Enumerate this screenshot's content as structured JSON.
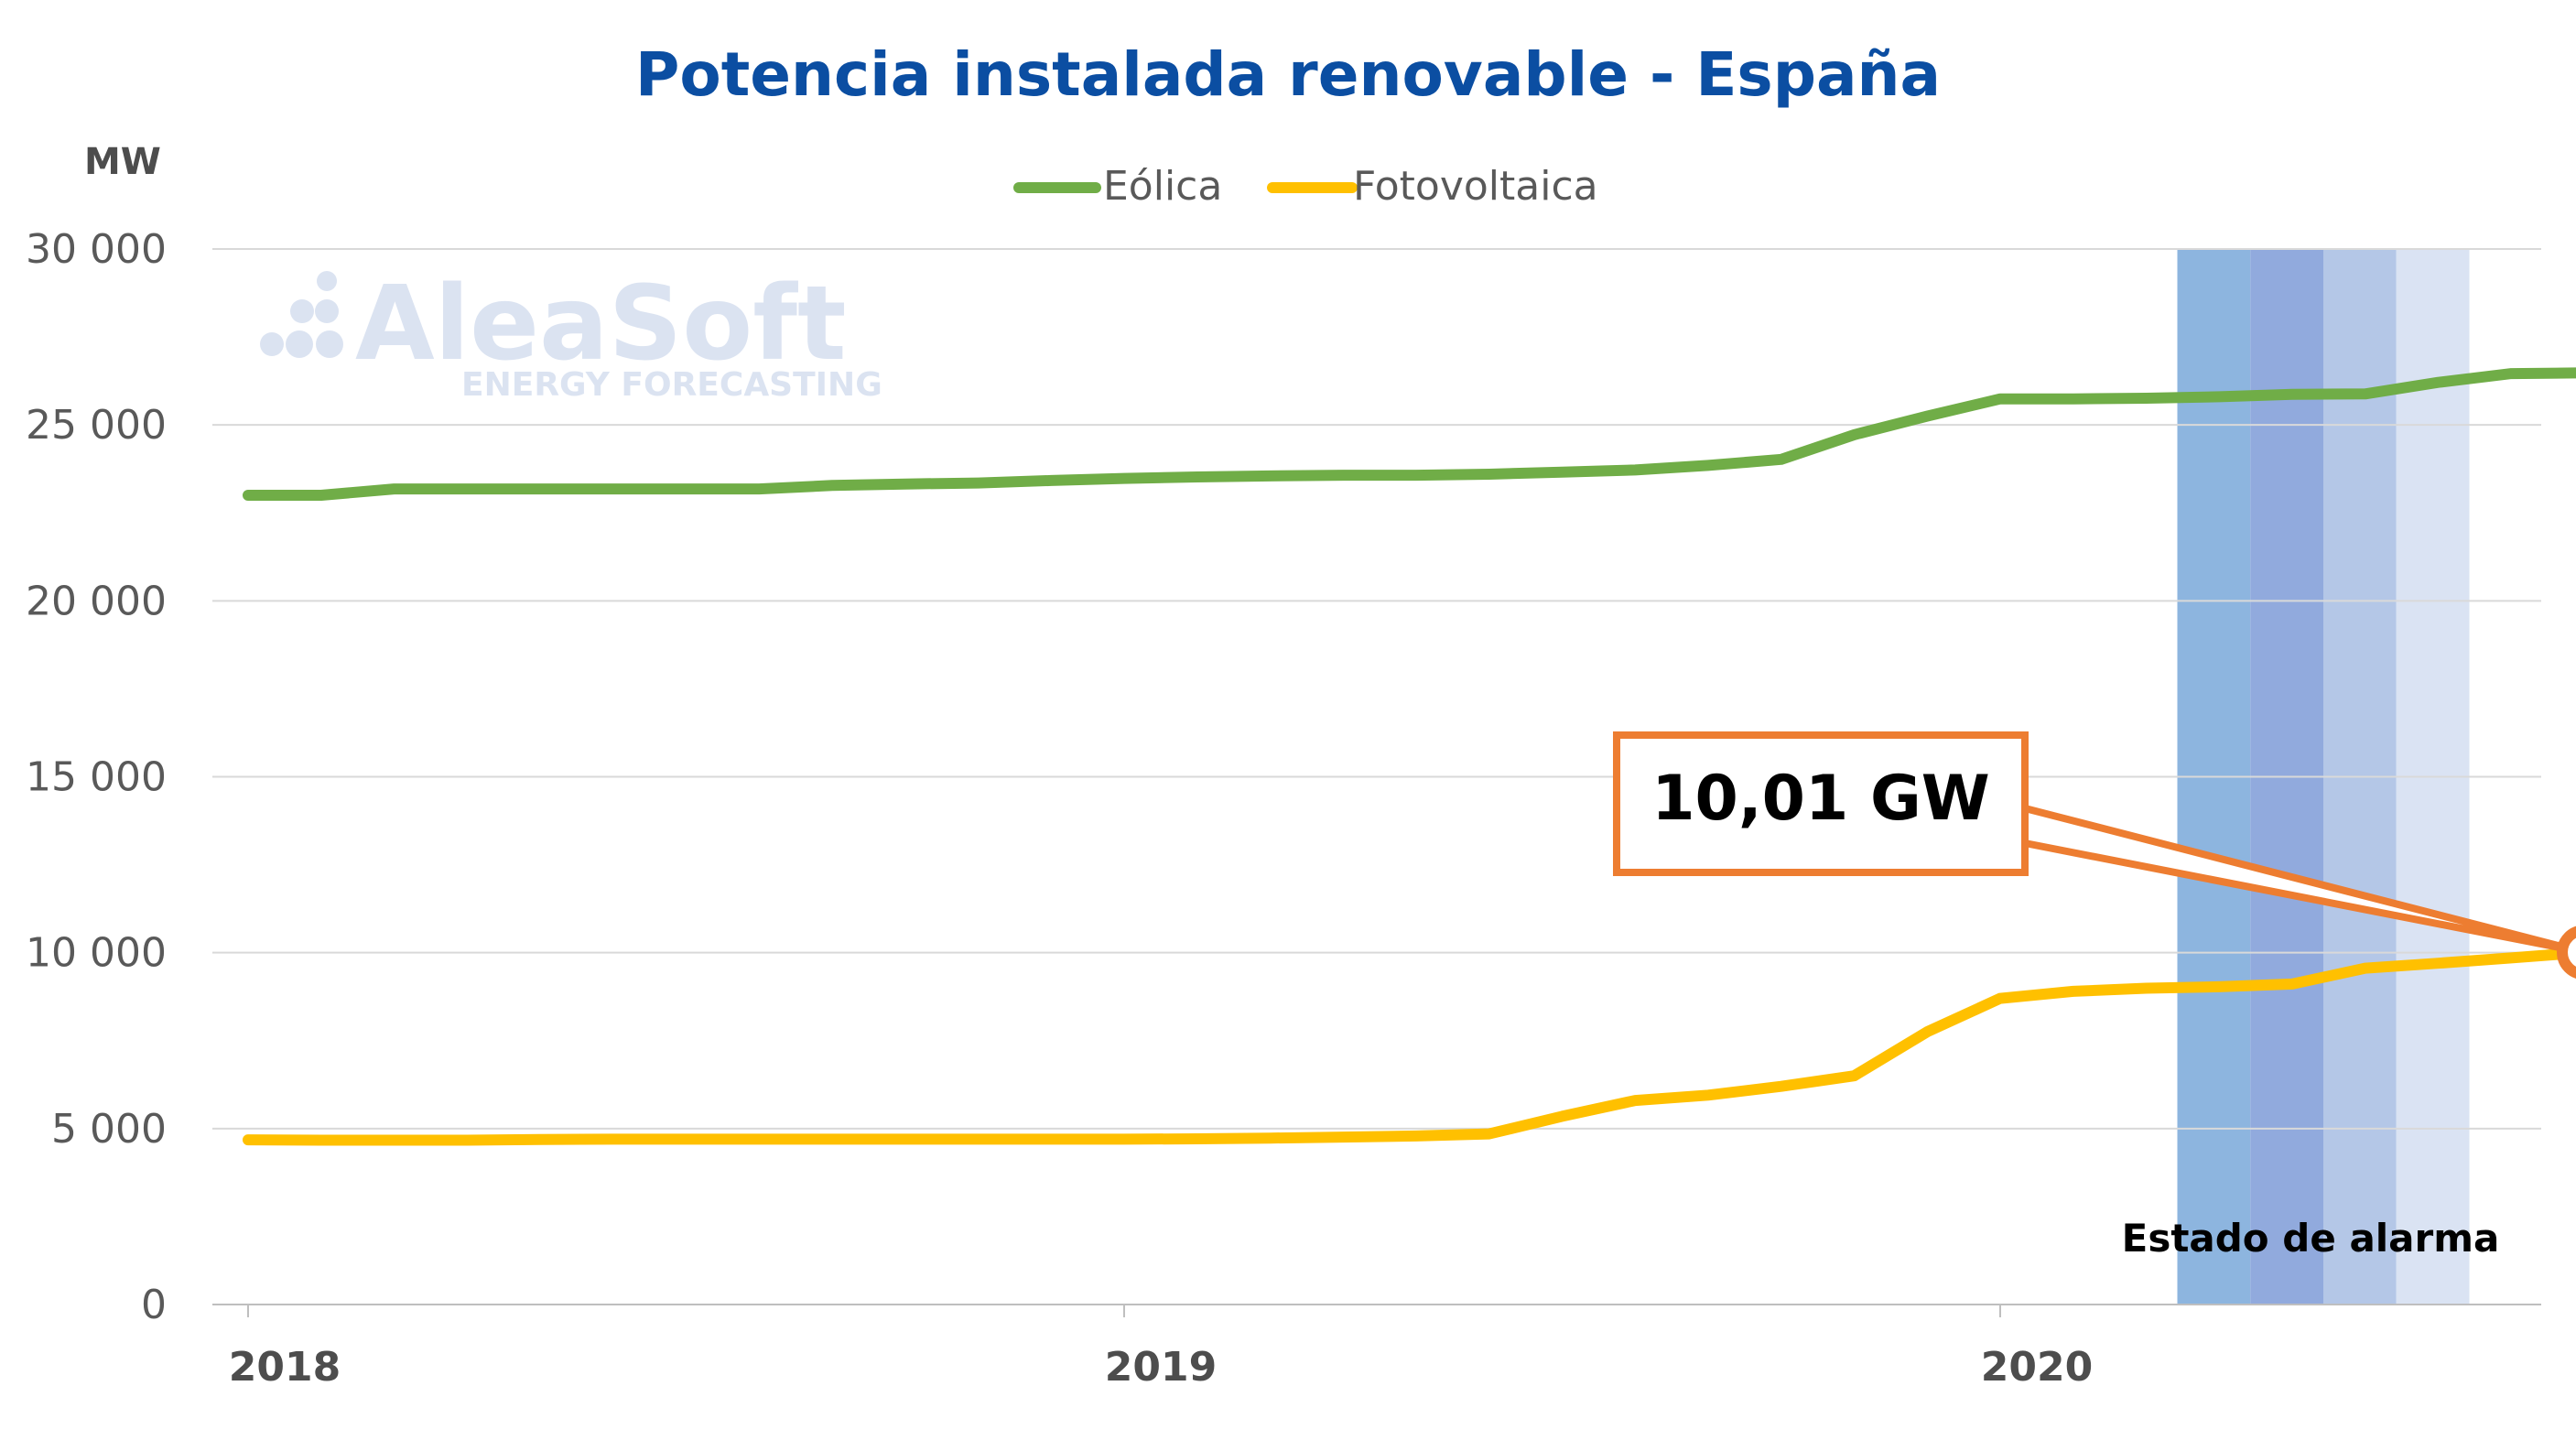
{
  "chart_data": {
    "type": "line",
    "title": "Potencia instalada renovable - España",
    "ylabel": "MW",
    "xlabel": "",
    "ylim": [
      0,
      30000
    ],
    "yticks": [
      0,
      5000,
      10000,
      15000,
      20000,
      25000,
      30000
    ],
    "ytick_labels": [
      "0",
      "5 000",
      "10 000",
      "15 000",
      "20 000",
      "25 000",
      "30 000"
    ],
    "xlim": [
      "2018-01",
      "2020-08"
    ],
    "xticks": [
      "2018",
      "2019",
      "2020"
    ],
    "grid": "horizontal",
    "legend": "top-center",
    "watermark": {
      "logo": "AleaSoft",
      "subtitle": "ENERGY FORECASTING"
    },
    "series": [
      {
        "name": "Eólica",
        "color": "#70ad47",
        "points": [
          [
            "2018-01",
            23000
          ],
          [
            "2018-02",
            23000
          ],
          [
            "2018-03",
            23180
          ],
          [
            "2018-04",
            23180
          ],
          [
            "2018-05",
            23180
          ],
          [
            "2018-06",
            23180
          ],
          [
            "2018-07",
            23180
          ],
          [
            "2018-08",
            23180
          ],
          [
            "2018-09",
            23280
          ],
          [
            "2018-10",
            23320
          ],
          [
            "2018-11",
            23350
          ],
          [
            "2018-12",
            23420
          ],
          [
            "2019-01",
            23480
          ],
          [
            "2019-02",
            23520
          ],
          [
            "2019-03",
            23550
          ],
          [
            "2019-04",
            23570
          ],
          [
            "2019-05",
            23570
          ],
          [
            "2019-06",
            23600
          ],
          [
            "2019-07",
            23660
          ],
          [
            "2019-08",
            23720
          ],
          [
            "2019-09",
            23850
          ],
          [
            "2019-10",
            24020
          ],
          [
            "2019-11",
            24720
          ],
          [
            "2019-12",
            25250
          ],
          [
            "2020-01",
            25740
          ],
          [
            "2020-02",
            25740
          ],
          [
            "2020-03",
            25760
          ],
          [
            "2020-04",
            25800
          ],
          [
            "2020-05",
            25870
          ],
          [
            "2020-06",
            25880
          ],
          [
            "2020-07",
            26210
          ],
          [
            "2020-08",
            26460
          ],
          [
            "2020-09",
            26480
          ]
        ]
      },
      {
        "name": "Fotovoltaica",
        "color": "#ffc000",
        "points": [
          [
            "2018-01",
            4680
          ],
          [
            "2018-02",
            4670
          ],
          [
            "2018-03",
            4670
          ],
          [
            "2018-04",
            4670
          ],
          [
            "2018-05",
            4690
          ],
          [
            "2018-06",
            4700
          ],
          [
            "2018-07",
            4700
          ],
          [
            "2018-08",
            4700
          ],
          [
            "2018-09",
            4700
          ],
          [
            "2018-10",
            4700
          ],
          [
            "2018-11",
            4700
          ],
          [
            "2018-12",
            4700
          ],
          [
            "2019-01",
            4700
          ],
          [
            "2019-02",
            4710
          ],
          [
            "2019-03",
            4730
          ],
          [
            "2019-04",
            4760
          ],
          [
            "2019-05",
            4790
          ],
          [
            "2019-06",
            4850
          ],
          [
            "2019-07",
            5350
          ],
          [
            "2019-08",
            5800
          ],
          [
            "2019-09",
            5950
          ],
          [
            "2019-10",
            6200
          ],
          [
            "2019-11",
            6500
          ],
          [
            "2019-12",
            7750
          ],
          [
            "2020-01",
            8700
          ],
          [
            "2020-02",
            8900
          ],
          [
            "2020-03",
            8990
          ],
          [
            "2020-04",
            9030
          ],
          [
            "2020-05",
            9110
          ],
          [
            "2020-06",
            9560
          ],
          [
            "2020-07",
            9700
          ],
          [
            "2020-08",
            9850
          ],
          [
            "2020-09",
            10010
          ]
        ]
      }
    ],
    "shaded_periods": {
      "label": "Estado de alarma",
      "bands": [
        {
          "start": "2020-03-14",
          "end": "2020-04-14",
          "color": "#8db5df"
        },
        {
          "start": "2020-04-14",
          "end": "2020-05-14",
          "color": "#91aadd"
        },
        {
          "start": "2020-05-14",
          "end": "2020-06-14",
          "color": "#b4c7e7"
        },
        {
          "start": "2020-06-14",
          "end": "2020-07-14",
          "color": "#dae3f3"
        }
      ]
    },
    "annotation": {
      "text": "10,01 GW",
      "series": "Fotovoltaica",
      "point": [
        "2020-09",
        10010
      ],
      "color": "#ed7d31"
    }
  }
}
